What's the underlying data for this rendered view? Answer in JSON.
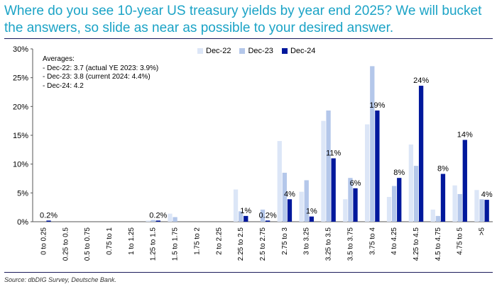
{
  "title": {
    "line1": "Where do you see 10-year US treasury yields by year end 2025? We will bucket",
    "line2": "the answers, so slide as near as possible to your desired answer."
  },
  "source": "Source: dbDIG Survey, Deutsche Bank.",
  "averages": {
    "heading": "Averages:",
    "lines": [
      "- Dec-22: 3.7 (actual YE 2023: 3.9%)",
      "- Dec-23: 3.8 (current 2024: 4.4%)",
      "- Dec-24: 4.2"
    ]
  },
  "colors": {
    "dec22": "#dce6f7",
    "dec23": "#b4c7ea",
    "dec24": "#00189c"
  },
  "chart_data": {
    "type": "bar",
    "title": "Where do you see 10-year US treasury yields by year end 2025? We will bucket the answers, so slide as near as possible to your desired answer.",
    "xlabel": "",
    "ylabel": "",
    "ylim": [
      0,
      30
    ],
    "yticks": [
      "0%",
      "5%",
      "10%",
      "15%",
      "20%",
      "25%",
      "30%"
    ],
    "categories": [
      "0 to 0.25",
      "0.25 to 0.5",
      "0.5 to 0.75",
      "0.75 to 1",
      "1 to 1.25",
      "1.25 to 1.5",
      "1.5 to 1.75",
      "1.75 to 2",
      "2 to 2.25",
      "2.25 to 2.5",
      "2.5 to 2.75",
      "2.75 to 3",
      "3 to 3.25",
      "3.25 to 3.5",
      "3.5 to 3.75",
      "3.75 to 4",
      "4 to 4.25",
      "4.25 to 4.5",
      "4.5 to 4.75",
      "4.75 to 5",
      ">5"
    ],
    "series": [
      {
        "name": "Dec-22",
        "values": [
          0,
          0,
          0,
          0,
          0,
          0.2,
          1.4,
          0,
          0,
          5.6,
          0,
          14.0,
          5.2,
          17.5,
          3.9,
          16.9,
          4.3,
          13.4,
          2.1,
          6.3,
          5.5
        ]
      },
      {
        "name": "Dec-23",
        "values": [
          0,
          0,
          0,
          0,
          0,
          0.3,
          0.8,
          0,
          0,
          1.8,
          2.1,
          8.5,
          7.2,
          19.3,
          7.6,
          27.0,
          6.2,
          9.7,
          1.0,
          4.8,
          3.9
        ]
      },
      {
        "name": "Dec-24",
        "values": [
          0.2,
          0,
          0,
          0,
          0,
          0.2,
          0,
          0,
          0,
          1.0,
          0.2,
          3.9,
          0.9,
          11.0,
          5.8,
          19.3,
          7.6,
          23.6,
          8.3,
          14.2,
          3.8
        ]
      }
    ],
    "data_labels": [
      "0.2%",
      "",
      "",
      "",
      "",
      "0.2%",
      "",
      "",
      "",
      "1%",
      "0.2%",
      "4%",
      "1%",
      "11%",
      "6%",
      "19%",
      "8%",
      "24%",
      "8%",
      "14%",
      "4%"
    ],
    "legend_position": "top-center"
  }
}
